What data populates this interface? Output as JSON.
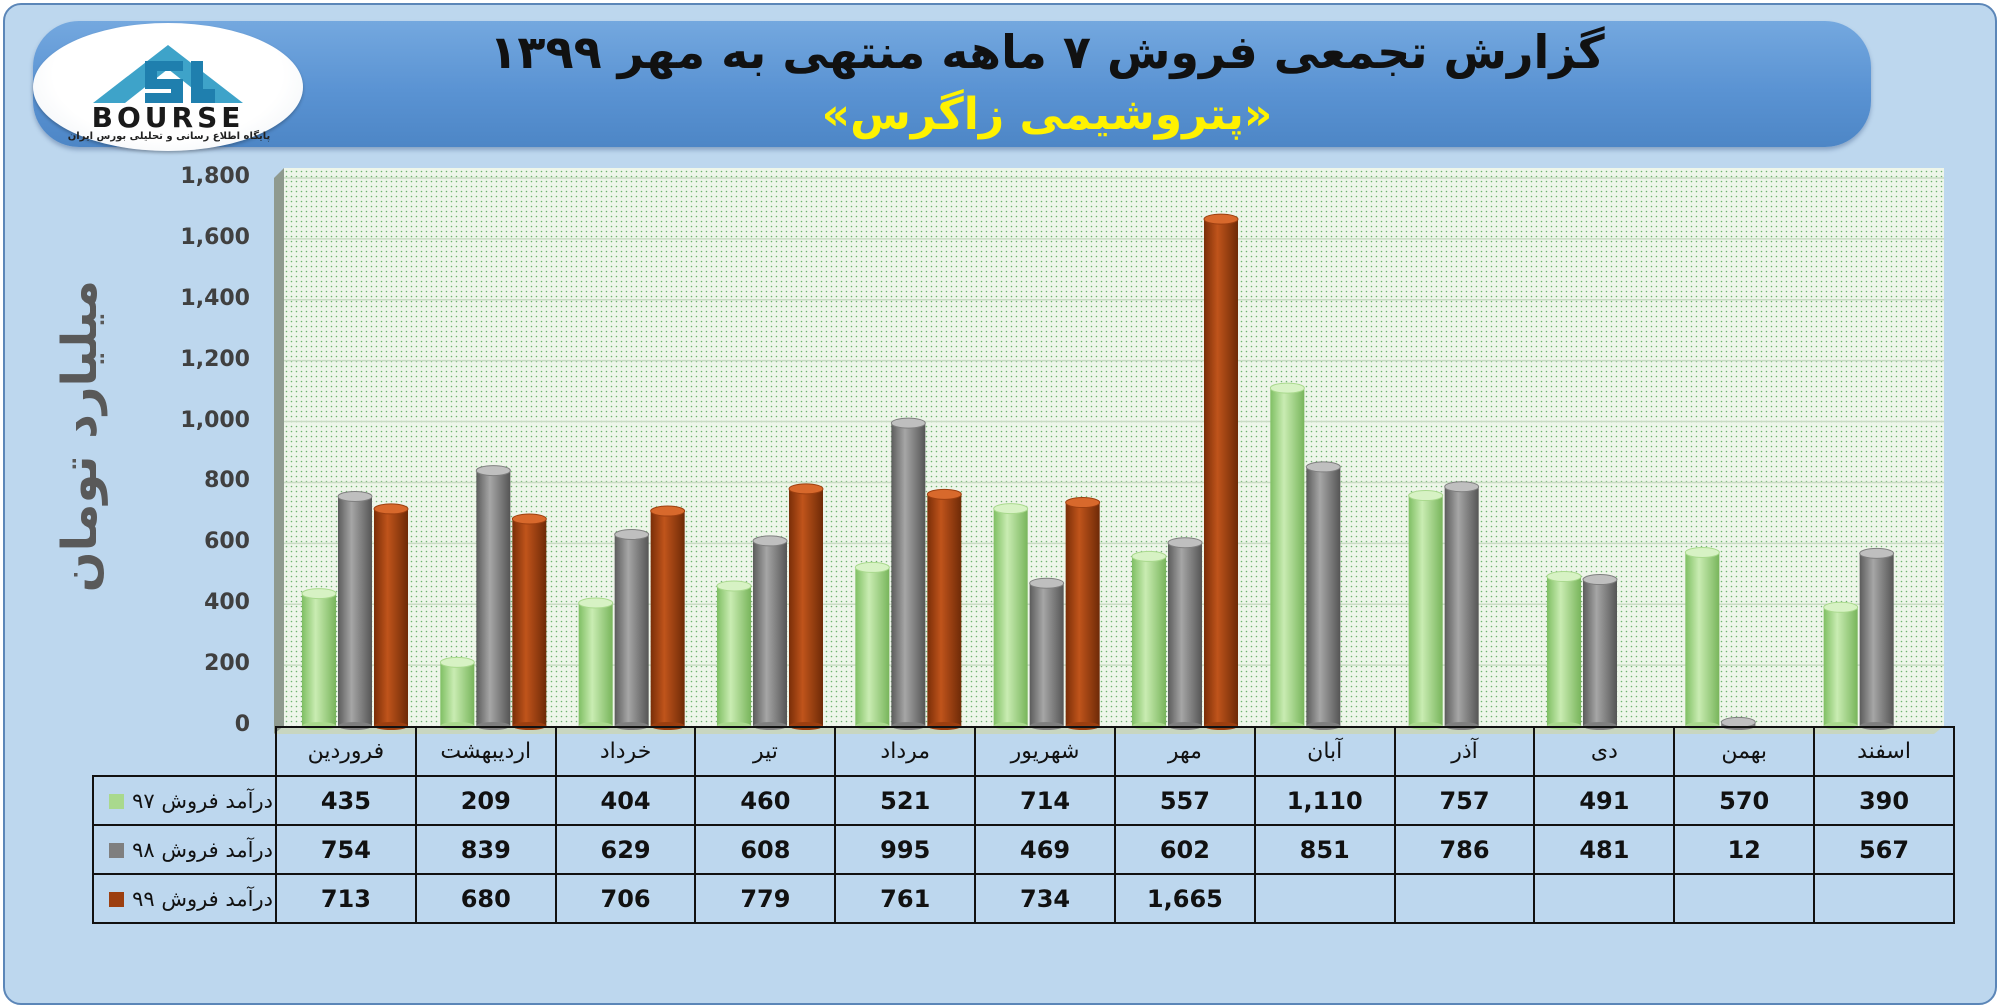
{
  "header": {
    "title": "گزارش تجمعی فروش ۷ ماهه منتهی به مهر ۱۳۹۹",
    "subtitle": "«پتروشیمی زاگرس»"
  },
  "logo": {
    "name": "BOURSE",
    "tagline": "پایگاه اطلاع رسانی و تحلیلی بورس ایران"
  },
  "colors": {
    "series_97": "#a9d98d",
    "series_98": "#7f7f7f",
    "series_99": "#9c3f10",
    "plot_background": "#eaf3e4",
    "frame_background": "#bdd7ee"
  },
  "chart_data": {
    "type": "bar",
    "title": "گزارش تجمعی فروش ۷ ماهه منتهی به مهر ۱۳۹۹",
    "subtitle": "«پتروشیمی زاگرس»",
    "ylabel": "میلیارد تومان",
    "ylim": [
      0,
      1800
    ],
    "yticks": [
      "0",
      "200",
      "400",
      "600",
      "800",
      "1,000",
      "1,200",
      "1,400",
      "1,600",
      "1,800"
    ],
    "grid": true,
    "legend": "data-table",
    "categories": [
      "فروردین",
      "اردیبهشت",
      "خرداد",
      "تیر",
      "مرداد",
      "شهریور",
      "مهر",
      "آبان",
      "آذر",
      "دی",
      "بهمن",
      "اسفند"
    ],
    "series": [
      {
        "name": "درآمد فروش ۹۷",
        "values": [
          435,
          209,
          404,
          460,
          521,
          714,
          557,
          1110,
          757,
          491,
          570,
          390
        ],
        "labels": [
          "435",
          "209",
          "404",
          "460",
          "521",
          "714",
          "557",
          "1,110",
          "757",
          "491",
          "570",
          "390"
        ]
      },
      {
        "name": "درآمد فروش ۹۸",
        "values": [
          754,
          839,
          629,
          608,
          995,
          469,
          602,
          851,
          786,
          481,
          12,
          567
        ],
        "labels": [
          "754",
          "839",
          "629",
          "608",
          "995",
          "469",
          "602",
          "851",
          "786",
          "481",
          "12",
          "567"
        ]
      },
      {
        "name": "درآمد فروش ۹۹",
        "values": [
          713,
          680,
          706,
          779,
          761,
          734,
          1665,
          null,
          null,
          null,
          null,
          null
        ],
        "labels": [
          "713",
          "680",
          "706",
          "779",
          "761",
          "734",
          "1,665",
          "",
          "",
          "",
          "",
          ""
        ]
      }
    ]
  }
}
